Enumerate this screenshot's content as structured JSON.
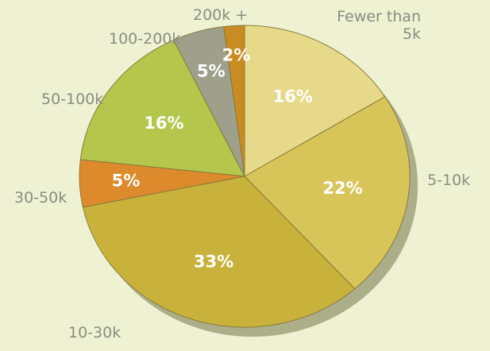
{
  "chart_data": {
    "type": "pie",
    "categories": [
      "Fewer than 5k",
      "5-10k",
      "10-30k",
      "30-50k",
      "50-100k",
      "100-200k",
      "200k +"
    ],
    "values": [
      16,
      22,
      33,
      5,
      16,
      5,
      2
    ],
    "value_labels": [
      "16%",
      "22%",
      "33%",
      "5%",
      "16%",
      "5%",
      "2%"
    ],
    "colors": [
      "#e6d98a",
      "#d8c55a",
      "#c9b23c",
      "#dc8a2c",
      "#b5c64c",
      "#9fa08c",
      "#c98c22"
    ]
  }
}
